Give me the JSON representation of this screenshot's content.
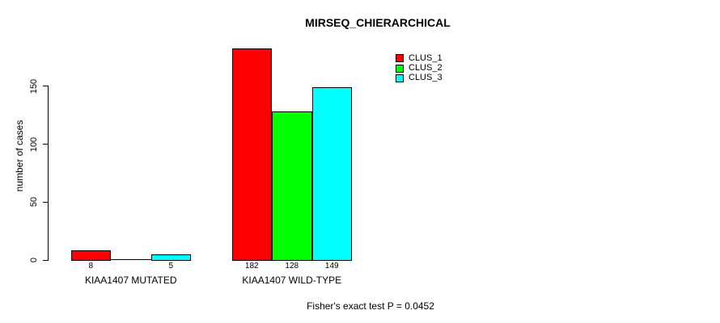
{
  "chart_data": {
    "type": "bar",
    "title": "MIRSEQ_CHIERARCHICAL",
    "ylabel": "number of cases",
    "xlabel": "",
    "categories": [
      "KIAA1407 MUTATED",
      "KIAA1407 WILD-TYPE"
    ],
    "series": [
      {
        "name": "CLUS_1",
        "color": "#ff0000",
        "values": [
          8,
          182
        ]
      },
      {
        "name": "CLUS_2",
        "color": "#00ff00",
        "values": [
          0,
          128
        ]
      },
      {
        "name": "CLUS_3",
        "color": "#00ffff",
        "values": [
          5,
          149
        ]
      }
    ],
    "value_labels": [
      [
        "8",
        "",
        "5"
      ],
      [
        "182",
        "128",
        "149"
      ]
    ],
    "yticks": [
      "0",
      "50",
      "100",
      "150"
    ],
    "ylim": [
      0,
      182
    ],
    "grid": false,
    "legend_position": "top-right",
    "legend_entries": [
      "CLUS_1",
      "CLUS_2",
      "CLUS_3"
    ],
    "annotation": "Fisher's exact test P = 0.0452",
    "bar_border_color": "#000000",
    "background_color": "#ffffff"
  }
}
